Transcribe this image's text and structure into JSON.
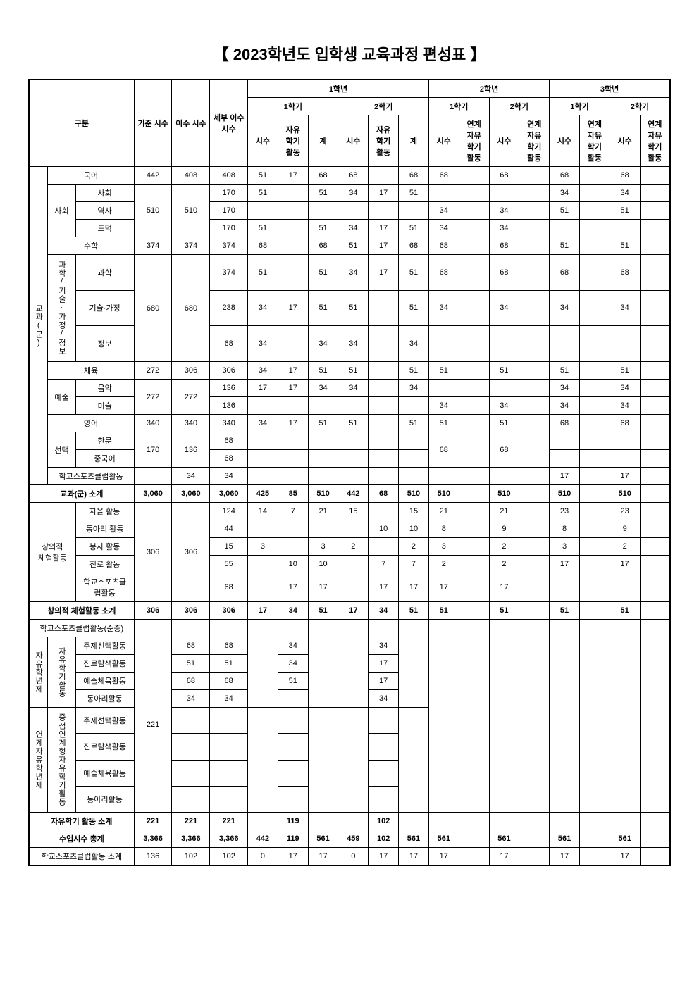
{
  "title": "【 2023학년도 입학생 교육과정 편성표 】",
  "header": {
    "gubun": "구분",
    "std_hours": "기준\n시수",
    "imp_hours": "이수\n시수",
    "detail_hours": "세부\n이수\n시수",
    "year1": "1학년",
    "year2": "2학년",
    "year3": "3학년",
    "sem1": "1학기",
    "sem2": "2학기",
    "sisu": "시수",
    "free_act": "자유\n학기\n활동",
    "gye": "계",
    "link_free": "연계\n자유\n학기\n활동"
  },
  "cat": {
    "gyogwa": "교과(군)",
    "korean": "국어",
    "social_grp": "사회",
    "social": "사회",
    "history": "역사",
    "ethics": "도덕",
    "math": "수학",
    "sci_grp": "과학/기술·가정/정보",
    "science": "과학",
    "tech_home": "기술·가정",
    "info": "정보",
    "pe": "체육",
    "arts_grp": "예술",
    "music": "음악",
    "fine_art": "미술",
    "english": "영어",
    "elective_grp": "선택",
    "hanmun": "한문",
    "chinese": "중국어",
    "sports_club": "학교스포츠클럽활동",
    "subtotal_gyogwa": "교과(군) 소계",
    "creative_grp": "창의적\n체험활동",
    "auto_act": "자율 활동",
    "club_act": "동아리 활동",
    "service_act": "봉사 활동",
    "career_act": "진로 활동",
    "sports_in_creative": "학교스포츠클\n럽활동",
    "subtotal_creative": "창의적 체험활동 소계",
    "sports_net": "학교스포츠클럽활동(순증)",
    "free_year_grp": "자유학년제",
    "free_sem_grp": "자유학기활동",
    "link_year_grp": "연계자유학년제",
    "focus_link_grp": "중점연계형자유학기활동",
    "topic_sel": "주제선택활동",
    "career_explore": "진로탐색활동",
    "art_pe": "예술체육활동",
    "club": "동아리활동",
    "subtotal_free": "자유학기 활동 소계",
    "total_class": "수업시수 총계",
    "subtotal_sports": "학교스포츠클럽활동 소계"
  },
  "rows": {
    "korean": {
      "std": "442",
      "imp": "408",
      "det": "408",
      "y1s1_s": "51",
      "y1s1_f": "17",
      "y1s1_g": "68",
      "y1s2_s": "68",
      "y1s2_f": "",
      "y1s2_g": "68",
      "y2s1_s": "68",
      "y2s1_l": "",
      "y2s2_s": "68",
      "y2s2_l": "",
      "y3s1_s": "68",
      "y3s1_l": "",
      "y3s2_s": "68",
      "y3s2_l": ""
    },
    "social": {
      "std": "510",
      "imp": "510",
      "det": "170",
      "y1s1_s": "51",
      "y1s1_f": "",
      "y1s1_g": "51",
      "y1s2_s": "34",
      "y1s2_f": "17",
      "y1s2_g": "51",
      "y2s1_s": "",
      "y2s1_l": "",
      "y2s2_s": "",
      "y2s2_l": "",
      "y3s1_s": "34",
      "y3s1_l": "",
      "y3s2_s": "34",
      "y3s2_l": ""
    },
    "history": {
      "det": "170",
      "y1s1_s": "",
      "y1s1_f": "",
      "y1s1_g": "",
      "y1s2_s": "",
      "y1s2_f": "",
      "y1s2_g": "",
      "y2s1_s": "34",
      "y2s1_l": "",
      "y2s2_s": "34",
      "y2s2_l": "",
      "y3s1_s": "51",
      "y3s1_l": "",
      "y3s2_s": "51",
      "y3s2_l": ""
    },
    "ethics": {
      "det": "170",
      "y1s1_s": "51",
      "y1s1_f": "",
      "y1s1_g": "51",
      "y1s2_s": "34",
      "y1s2_f": "17",
      "y1s2_g": "51",
      "y2s1_s": "34",
      "y2s1_l": "",
      "y2s2_s": "34",
      "y2s2_l": "",
      "y3s1_s": "",
      "y3s1_l": "",
      "y3s2_s": "",
      "y3s2_l": ""
    },
    "math": {
      "std": "374",
      "imp": "374",
      "det": "374",
      "y1s1_s": "68",
      "y1s1_f": "",
      "y1s1_g": "68",
      "y1s2_s": "51",
      "y1s2_f": "17",
      "y1s2_g": "68",
      "y2s1_s": "68",
      "y2s1_l": "",
      "y2s2_s": "68",
      "y2s2_l": "",
      "y3s1_s": "51",
      "y3s1_l": "",
      "y3s2_s": "51",
      "y3s2_l": ""
    },
    "science": {
      "std": "680",
      "imp": "680",
      "det": "374",
      "y1s1_s": "51",
      "y1s1_f": "",
      "y1s1_g": "51",
      "y1s2_s": "34",
      "y1s2_f": "17",
      "y1s2_g": "51",
      "y2s1_s": "68",
      "y2s1_l": "",
      "y2s2_s": "68",
      "y2s2_l": "",
      "y3s1_s": "68",
      "y3s1_l": "",
      "y3s2_s": "68",
      "y3s2_l": ""
    },
    "tech_home": {
      "det": "238",
      "y1s1_s": "34",
      "y1s1_f": "17",
      "y1s1_g": "51",
      "y1s2_s": "51",
      "y1s2_f": "",
      "y1s2_g": "51",
      "y2s1_s": "34",
      "y2s1_l": "",
      "y2s2_s": "34",
      "y2s2_l": "",
      "y3s1_s": "34",
      "y3s1_l": "",
      "y3s2_s": "34",
      "y3s2_l": ""
    },
    "info": {
      "det": "68",
      "y1s1_s": "34",
      "y1s1_f": "",
      "y1s1_g": "34",
      "y1s2_s": "34",
      "y1s2_f": "",
      "y1s2_g": "34",
      "y2s1_s": "",
      "y2s1_l": "",
      "y2s2_s": "",
      "y2s2_l": "",
      "y3s1_s": "",
      "y3s1_l": "",
      "y3s2_s": "",
      "y3s2_l": ""
    },
    "pe": {
      "std": "272",
      "imp": "306",
      "det": "306",
      "y1s1_s": "34",
      "y1s1_f": "17",
      "y1s1_g": "51",
      "y1s2_s": "51",
      "y1s2_f": "",
      "y1s2_g": "51",
      "y2s1_s": "51",
      "y2s1_l": "",
      "y2s2_s": "51",
      "y2s2_l": "",
      "y3s1_s": "51",
      "y3s1_l": "",
      "y3s2_s": "51",
      "y3s2_l": ""
    },
    "music": {
      "std": "272",
      "imp": "272",
      "det": "136",
      "y1s1_s": "17",
      "y1s1_f": "17",
      "y1s1_g": "34",
      "y1s2_s": "34",
      "y1s2_f": "",
      "y1s2_g": "34",
      "y2s1_s": "",
      "y2s1_l": "",
      "y2s2_s": "",
      "y2s2_l": "",
      "y3s1_s": "34",
      "y3s1_l": "",
      "y3s2_s": "34",
      "y3s2_l": ""
    },
    "fine_art": {
      "det": "136",
      "y1s1_s": "",
      "y1s1_f": "",
      "y1s1_g": "",
      "y1s2_s": "",
      "y1s2_f": "",
      "y1s2_g": "",
      "y2s1_s": "34",
      "y2s1_l": "",
      "y2s2_s": "34",
      "y2s2_l": "",
      "y3s1_s": "34",
      "y3s1_l": "",
      "y3s2_s": "34",
      "y3s2_l": ""
    },
    "english": {
      "std": "340",
      "imp": "340",
      "det": "340",
      "y1s1_s": "34",
      "y1s1_f": "17",
      "y1s1_g": "51",
      "y1s2_s": "51",
      "y1s2_f": "",
      "y1s2_g": "51",
      "y2s1_s": "51",
      "y2s1_l": "",
      "y2s2_s": "51",
      "y2s2_l": "",
      "y3s1_s": "68",
      "y3s1_l": "",
      "y3s2_s": "68",
      "y3s2_l": ""
    },
    "hanmun": {
      "std": "170",
      "imp": "136",
      "det": "68",
      "y1s1_s": "",
      "y1s1_f": "",
      "y1s1_g": "",
      "y1s2_s": "",
      "y1s2_f": "",
      "y1s2_g": "",
      "y2s1_s": "68",
      "y2s1_l": "",
      "y2s2_s": "68",
      "y2s2_l": "",
      "y3s1_s": "",
      "y3s1_l": "",
      "y3s2_s": "",
      "y3s2_l": ""
    },
    "chinese": {
      "det": "68",
      "y1s1_s": "",
      "y1s1_f": "",
      "y1s1_g": "",
      "y1s2_s": "",
      "y1s2_f": "",
      "y1s2_g": "",
      "y2s1_s": "",
      "y2s1_l": "",
      "y2s2_s": "",
      "y2s2_l": "",
      "y3s1_s": "",
      "y3s1_l": "",
      "y3s2_s": "",
      "y3s2_l": ""
    },
    "sports_cl": {
      "std": "",
      "imp": "34",
      "det": "34",
      "y1s1_s": "",
      "y1s1_f": "",
      "y1s1_g": "",
      "y1s2_s": "",
      "y1s2_f": "",
      "y1s2_g": "",
      "y2s1_s": "",
      "y2s1_l": "",
      "y2s2_s": "",
      "y2s2_l": "",
      "y3s1_s": "17",
      "y3s1_l": "",
      "y3s2_s": "17",
      "y3s2_l": ""
    },
    "sub_gyogwa": {
      "std": "3,060",
      "imp": "3,060",
      "det": "3,060",
      "y1s1_s": "425",
      "y1s1_f": "85",
      "y1s1_g": "510",
      "y1s2_s": "442",
      "y1s2_f": "68",
      "y1s2_g": "510",
      "y2s1_s": "510",
      "y2s1_l": "",
      "y2s2_s": "510",
      "y2s2_l": "",
      "y3s1_s": "510",
      "y3s1_l": "",
      "y3s2_s": "510",
      "y3s2_l": ""
    },
    "auto": {
      "std": "306",
      "imp": "306",
      "det": "124",
      "y1s1_s": "14",
      "y1s1_f": "7",
      "y1s1_g": "21",
      "y1s2_s": "15",
      "y1s2_f": "",
      "y1s2_g": "15",
      "y2s1_s": "21",
      "y2s1_l": "",
      "y2s2_s": "21",
      "y2s2_l": "",
      "y3s1_s": "23",
      "y3s1_l": "",
      "y3s2_s": "23",
      "y3s2_l": ""
    },
    "club": {
      "det": "44",
      "y1s1_s": "",
      "y1s1_f": "",
      "y1s1_g": "",
      "y1s2_s": "",
      "y1s2_f": "10",
      "y1s2_g": "10",
      "y2s1_s": "8",
      "y2s1_l": "",
      "y2s2_s": "9",
      "y2s2_l": "",
      "y3s1_s": "8",
      "y3s1_l": "",
      "y3s2_s": "9",
      "y3s2_l": ""
    },
    "service": {
      "det": "15",
      "y1s1_s": "3",
      "y1s1_f": "",
      "y1s1_g": "3",
      "y1s2_s": "2",
      "y1s2_f": "",
      "y1s2_g": "2",
      "y2s1_s": "3",
      "y2s1_l": "",
      "y2s2_s": "2",
      "y2s2_l": "",
      "y3s1_s": "3",
      "y3s1_l": "",
      "y3s2_s": "2",
      "y3s2_l": ""
    },
    "career": {
      "det": "55",
      "y1s1_s": "",
      "y1s1_f": "10",
      "y1s1_g": "10",
      "y1s2_s": "",
      "y1s2_f": "7",
      "y1s2_g": "7",
      "y2s1_s": "2",
      "y2s1_l": "",
      "y2s2_s": "2",
      "y2s2_l": "",
      "y3s1_s": "17",
      "y3s1_l": "",
      "y3s2_s": "17",
      "y3s2_l": ""
    },
    "sports_cr": {
      "det": "68",
      "y1s1_s": "",
      "y1s1_f": "17",
      "y1s1_g": "17",
      "y1s2_s": "",
      "y1s2_f": "17",
      "y1s2_g": "17",
      "y2s1_s": "17",
      "y2s1_l": "",
      "y2s2_s": "17",
      "y2s2_l": "",
      "y3s1_s": "",
      "y3s1_l": "",
      "y3s2_s": "",
      "y3s2_l": ""
    },
    "sub_creative": {
      "std": "306",
      "imp": "306",
      "det": "306",
      "y1s1_s": "17",
      "y1s1_f": "34",
      "y1s1_g": "51",
      "y1s2_s": "17",
      "y1s2_f": "34",
      "y1s2_g": "51",
      "y2s1_s": "51",
      "y2s1_l": "",
      "y2s2_s": "51",
      "y2s2_l": "",
      "y3s1_s": "51",
      "y3s1_l": "",
      "y3s2_s": "51",
      "y3s2_l": ""
    },
    "sports_net": {
      "std": "",
      "imp": "",
      "det": "",
      "y1s1_s": "",
      "y1s1_f": "",
      "y1s1_g": "",
      "y1s2_s": "",
      "y1s2_f": "",
      "y1s2_g": "",
      "y2s1_s": "",
      "y2s1_l": "",
      "y2s2_s": "",
      "y2s2_l": "",
      "y3s1_s": "",
      "y3s1_l": "",
      "y3s2_s": "",
      "y3s2_l": ""
    },
    "topic": {
      "std": "221",
      "imp": "68",
      "det": "68",
      "y1s1_s": "",
      "y1s1_f": "34",
      "y1s1_g": "",
      "y1s2_s": "",
      "y1s2_f": "34",
      "y1s2_g": ""
    },
    "career_ex": {
      "imp": "51",
      "det": "51",
      "y1s1_f": "34",
      "y1s2_f": "17"
    },
    "art_pe": {
      "imp": "68",
      "det": "68",
      "y1s1_f": "51",
      "y1s2_f": "17"
    },
    "club_fr": {
      "imp": "34",
      "det": "34",
      "y1s1_f": "",
      "y1s2_f": "34"
    },
    "sub_free": {
      "std": "221",
      "imp": "221",
      "det": "221",
      "y1s1_s": "",
      "y1s1_f": "119",
      "y1s1_g": "",
      "y1s2_s": "",
      "y1s2_f": "102",
      "y1s2_g": "",
      "y2s1_s": "",
      "y2s1_l": "",
      "y2s2_s": "",
      "y2s2_l": "",
      "y3s1_s": "",
      "y3s1_l": "",
      "y3s2_s": "",
      "y3s2_l": ""
    },
    "total": {
      "std": "3,366",
      "imp": "3,366",
      "det": "3,366",
      "y1s1_s": "442",
      "y1s1_f": "119",
      "y1s1_g": "561",
      "y1s2_s": "459",
      "y1s2_f": "102",
      "y1s2_g": "561",
      "y2s1_s": "561",
      "y2s1_l": "",
      "y2s2_s": "561",
      "y2s2_l": "",
      "y3s1_s": "561",
      "y3s1_l": "",
      "y3s2_s": "561",
      "y3s2_l": ""
    },
    "sub_sports": {
      "std": "136",
      "imp": "102",
      "det": "102",
      "y1s1_s": "0",
      "y1s1_f": "17",
      "y1s1_g": "17",
      "y1s2_s": "0",
      "y1s2_f": "17",
      "y1s2_g": "17",
      "y2s1_s": "17",
      "y2s1_l": "",
      "y2s2_s": "17",
      "y2s2_l": "",
      "y3s1_s": "17",
      "y3s1_l": "",
      "y3s2_s": "17",
      "y3s2_l": ""
    }
  }
}
